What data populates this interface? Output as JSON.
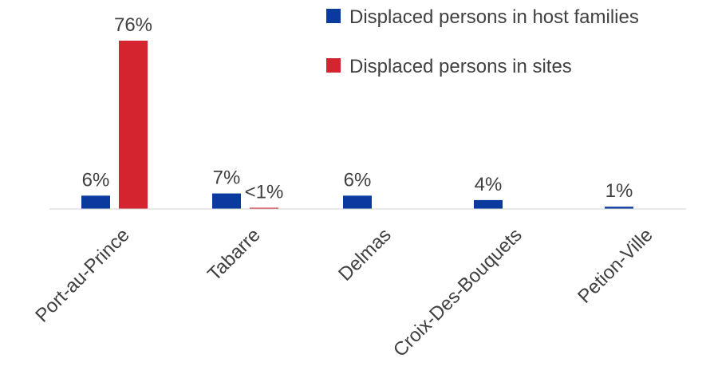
{
  "chart_data": {
    "type": "bar",
    "categories": [
      "Port-au-Prince",
      "Tabarre",
      "Delmas",
      "Croix-Des-Bouquets",
      "Petion-Ville"
    ],
    "series": [
      {
        "name": "Displaced persons in host families",
        "color": "#0B3A9E",
        "values": [
          6,
          7,
          6,
          4,
          1
        ],
        "labels": [
          "6%",
          "7%",
          "6%",
          "4%",
          "1%"
        ]
      },
      {
        "name": "Displaced persons in sites",
        "color": "#D42430",
        "values": [
          76,
          0.5,
          0,
          0,
          0
        ],
        "labels": [
          "76%",
          "<1%",
          "",
          "",
          ""
        ]
      }
    ],
    "ylim": [
      0,
      76
    ],
    "legend": "top-right",
    "grid": false
  }
}
